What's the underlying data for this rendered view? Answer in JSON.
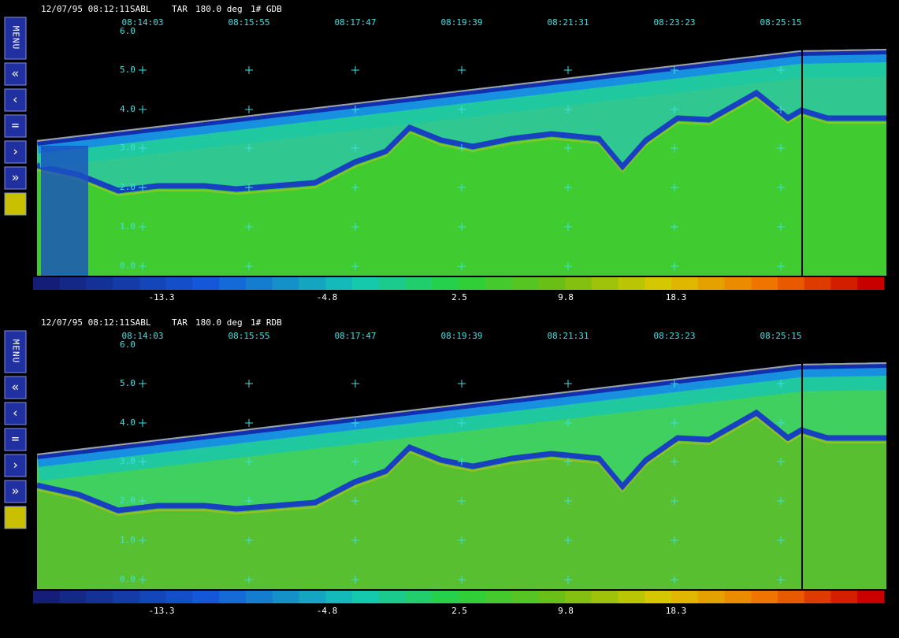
{
  "menu": {
    "label": "MENU",
    "buttons": [
      "«",
      "‹",
      "=",
      "›",
      "»"
    ]
  },
  "panels": [
    {
      "header": {
        "date_time": "12/07/95 08:12:11",
        "site": "SABL",
        "mode": "TAR",
        "angle": "180.0 deg",
        "product": "1# GDB"
      },
      "times": [
        "08:14:03",
        "08:15:55",
        "08:17:47",
        "08:19:39",
        "08:21:31",
        "08:23:23",
        "08:25:15"
      ],
      "heights": [
        "6.0",
        "5.0",
        "4.0",
        "3.0",
        "2.0",
        "1.0",
        "0.0"
      ],
      "colorbar_labels": [
        "-13.3",
        "-4.8",
        "2.5",
        "9.8",
        "18.3"
      ]
    },
    {
      "header": {
        "date_time": "12/07/95 08:12:11",
        "site": "SABL",
        "mode": "TAR",
        "angle": "180.0 deg",
        "product": "1# RDB"
      },
      "times": [
        "08:14:03",
        "08:15:55",
        "08:17:47",
        "08:19:39",
        "08:21:31",
        "08:23:23",
        "08:25:15"
      ],
      "heights": [
        "6.0",
        "5.0",
        "4.0",
        "3.0",
        "2.0",
        "1.0",
        "0.0"
      ],
      "colorbar_labels": [
        "-13.3",
        "-4.8",
        "2.5",
        "9.8",
        "18.3"
      ]
    }
  ]
}
